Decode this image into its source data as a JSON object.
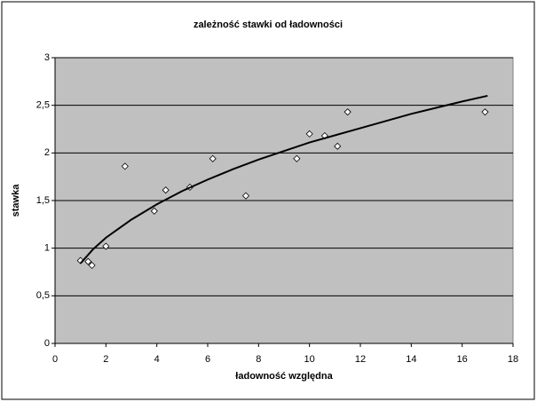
{
  "chart_data": {
    "type": "scatter",
    "title": "zależność stawki od ładowności",
    "xlabel": "ładowność względna",
    "ylabel": "stawka",
    "xlim": [
      0,
      18
    ],
    "xticks": [
      0,
      2,
      4,
      6,
      8,
      10,
      12,
      14,
      16,
      18
    ],
    "ylim": [
      0,
      3
    ],
    "yticks": [
      0,
      {
        "value": 0.5,
        "label": "0,5"
      },
      1,
      {
        "value": 1.5,
        "label": "1,5"
      },
      2,
      {
        "value": 2.5,
        "label": "2,5"
      },
      3
    ],
    "grid": true,
    "plot_color": "#c0c0c0",
    "series": [
      {
        "mode": "markers",
        "marker": "diamond",
        "color": "#ffffff",
        "x": [
          1.0,
          1.3,
          1.45,
          2.0,
          2.75,
          3.9,
          4.35,
          5.3,
          6.2,
          7.5,
          9.5,
          10.0,
          10.6,
          11.1,
          11.5,
          16.9
        ],
        "values": [
          0.87,
          0.86,
          0.82,
          1.02,
          1.86,
          1.39,
          1.61,
          1.64,
          1.94,
          1.55,
          1.94,
          2.2,
          2.18,
          2.07,
          2.43,
          2.43
        ]
      },
      {
        "mode": "line",
        "color": "#000000",
        "x": [
          1,
          1.5,
          2,
          3,
          4,
          5,
          6,
          7,
          8,
          10,
          12,
          14,
          16,
          17
        ],
        "values": [
          0.84,
          0.99,
          1.11,
          1.3,
          1.46,
          1.6,
          1.72,
          1.83,
          1.93,
          2.11,
          2.26,
          2.41,
          2.54,
          2.6
        ]
      }
    ]
  }
}
